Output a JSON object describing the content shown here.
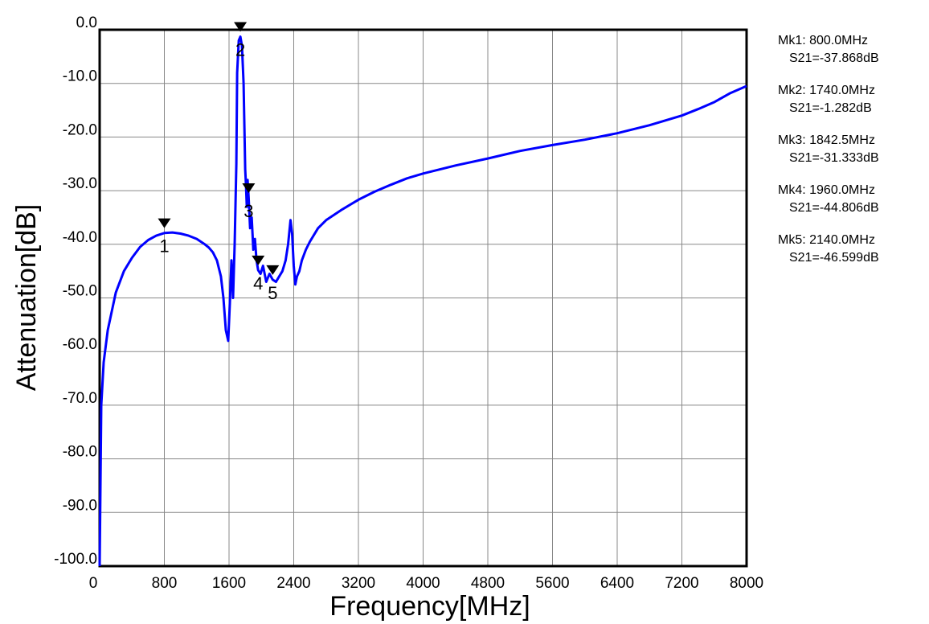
{
  "chart_data": {
    "type": "line",
    "xlabel": "Frequency[MHz]",
    "ylabel": "Attenuation[dB]",
    "xlim": [
      0,
      8000
    ],
    "ylim": [
      -100,
      0
    ],
    "grid": true,
    "line_color": "#0000ff",
    "x_ticks": [
      "0",
      "800",
      "1600",
      "2400",
      "3200",
      "4000",
      "4800",
      "5600",
      "6400",
      "7200",
      "8000"
    ],
    "y_ticks": [
      "0.0",
      "-10.0",
      "-20.0",
      "-30.0",
      "-40.0",
      "-50.0",
      "-60.0",
      "-70.0",
      "-80.0",
      "-90.0",
      "-100.0"
    ],
    "series": [
      {
        "x": [
          0,
          20,
          50,
          100,
          200,
          300,
          400,
          500,
          600,
          700,
          800,
          900,
          1000,
          1100,
          1200,
          1300,
          1350,
          1400,
          1450,
          1500,
          1530,
          1560,
          1590,
          1610,
          1630,
          1650,
          1670,
          1690,
          1700,
          1720,
          1740,
          1760,
          1780,
          1800,
          1810,
          1820,
          1830,
          1842.5,
          1860,
          1880,
          1900,
          1920,
          1940,
          1960,
          1990,
          2020,
          2060,
          2100,
          2140,
          2180,
          2220,
          2260,
          2300,
          2330,
          2360,
          2380,
          2400,
          2420,
          2440,
          2470,
          2500,
          2550,
          2600,
          2700,
          2800,
          3000,
          3200,
          3400,
          3600,
          3800,
          4000,
          4400,
          4800,
          5200,
          5600,
          6000,
          6400,
          6800,
          7200,
          7400,
          7600,
          7800,
          8000
        ],
        "y": [
          -100,
          -70,
          -62,
          -56,
          -49,
          -45,
          -42.5,
          -40.5,
          -39.2,
          -38.4,
          -37.9,
          -37.8,
          -38.0,
          -38.4,
          -39.0,
          -40.0,
          -40.6,
          -41.5,
          -43.0,
          -46.0,
          -50.0,
          -56.0,
          -58.0,
          -51.0,
          -43.0,
          -50.0,
          -40.0,
          -25.0,
          -8.0,
          -2.0,
          -1.282,
          -3.0,
          -10.0,
          -26.0,
          -29.0,
          -33.0,
          -28.0,
          -31.333,
          -37.0,
          -35.0,
          -41.0,
          -39.0,
          -43.0,
          -44.806,
          -45.5,
          -44.0,
          -47.0,
          -45.5,
          -46.599,
          -47.0,
          -46.0,
          -45.0,
          -43.0,
          -40.0,
          -35.5,
          -38.0,
          -44.0,
          -47.5,
          -46.0,
          -45.0,
          -43.0,
          -41.0,
          -39.5,
          -37.0,
          -35.5,
          -33.5,
          -31.7,
          -30.2,
          -28.9,
          -27.7,
          -26.8,
          -25.3,
          -24.0,
          -22.6,
          -21.5,
          -20.5,
          -19.3,
          -17.8,
          -16.0,
          -14.8,
          -13.5,
          -11.8,
          -10.5
        ]
      }
    ],
    "markers": [
      {
        "id": "1",
        "x": 800.0,
        "y": -37.868
      },
      {
        "id": "2",
        "x": 1740.0,
        "y": -1.282
      },
      {
        "id": "3",
        "x": 1842.5,
        "y": -31.333
      },
      {
        "id": "4",
        "x": 1960.0,
        "y": -44.806
      },
      {
        "id": "5",
        "x": 2140.0,
        "y": -46.599
      }
    ],
    "legend": [
      {
        "line1": "Mk1:  800.0MHz",
        "line2": "S21=-37.868dB"
      },
      {
        "line1": "Mk2: 1740.0MHz",
        "line2": "S21=-1.282dB"
      },
      {
        "line1": "Mk3: 1842.5MHz",
        "line2": "S21=-31.333dB"
      },
      {
        "line1": "Mk4: 1960.0MHz",
        "line2": "S21=-44.806dB"
      },
      {
        "line1": "Mk5: 2140.0MHz",
        "line2": "S21=-46.599dB"
      }
    ]
  }
}
